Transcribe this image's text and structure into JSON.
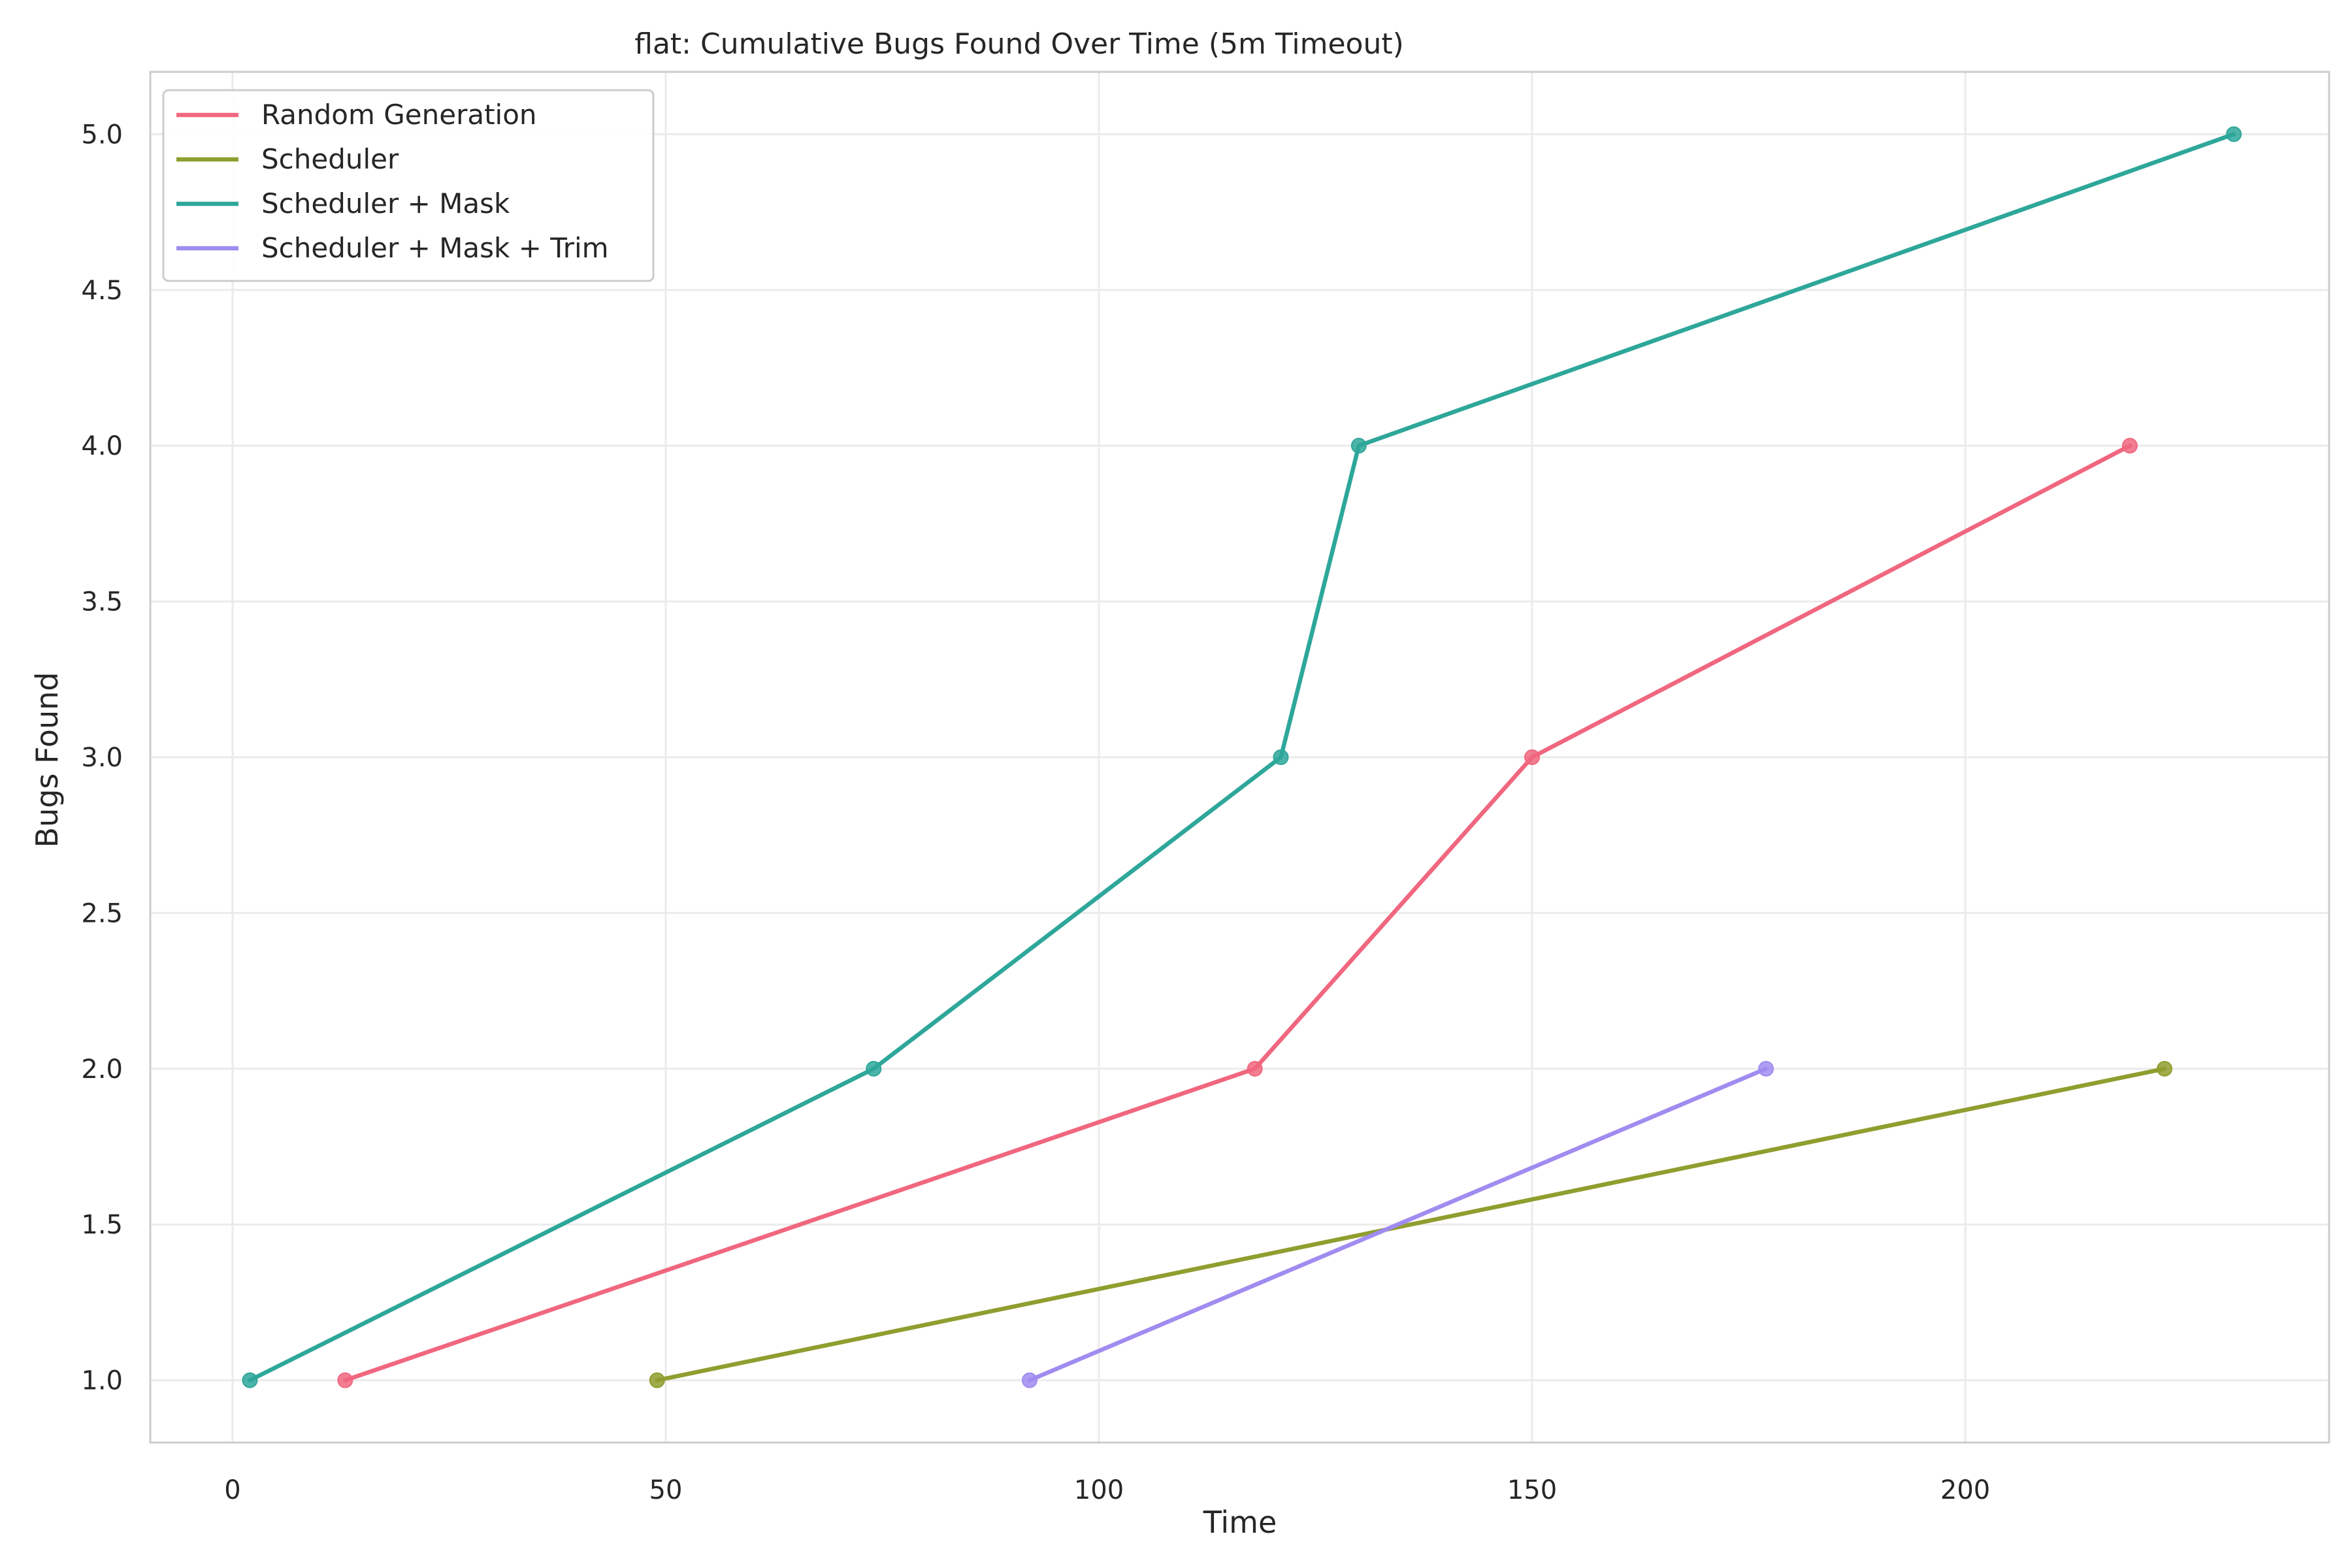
{
  "chart_data": {
    "type": "line",
    "title": "flat: Cumulative Bugs Found Over Time (5m Timeout)",
    "xlabel": "Time",
    "ylabel": "Bugs Found",
    "xlim": [
      -9.5,
      242
    ],
    "ylim": [
      0.8,
      5.2
    ],
    "xticks": [
      0,
      50,
      100,
      150,
      200
    ],
    "yticks": [
      1.0,
      1.5,
      2.0,
      2.5,
      3.0,
      3.5,
      4.0,
      4.5,
      5.0
    ],
    "xtick_labels": [
      "0",
      "50",
      "100",
      "150",
      "200"
    ],
    "ytick_labels": [
      "1.0",
      "1.5",
      "2.0",
      "2.5",
      "3.0",
      "3.5",
      "4.0",
      "4.5",
      "5.0"
    ],
    "grid": true,
    "legend_position": "top-left",
    "markers": true,
    "series": [
      {
        "name": "Random Generation",
        "color": "#f0677f",
        "x": [
          13,
          118,
          150,
          219
        ],
        "y": [
          1,
          2,
          3,
          4
        ]
      },
      {
        "name": "Scheduler",
        "color": "#8f9e2e",
        "x": [
          49,
          223
        ],
        "y": [
          1,
          2
        ]
      },
      {
        "name": "Scheduler + Mask",
        "color": "#2ea79a",
        "x": [
          2,
          74,
          121,
          130,
          231
        ],
        "y": [
          1,
          2,
          3,
          4,
          5
        ]
      },
      {
        "name": "Scheduler + Mask + Trim",
        "color": "#a08cf0",
        "x": [
          92,
          177
        ],
        "y": [
          1,
          2
        ]
      }
    ]
  }
}
